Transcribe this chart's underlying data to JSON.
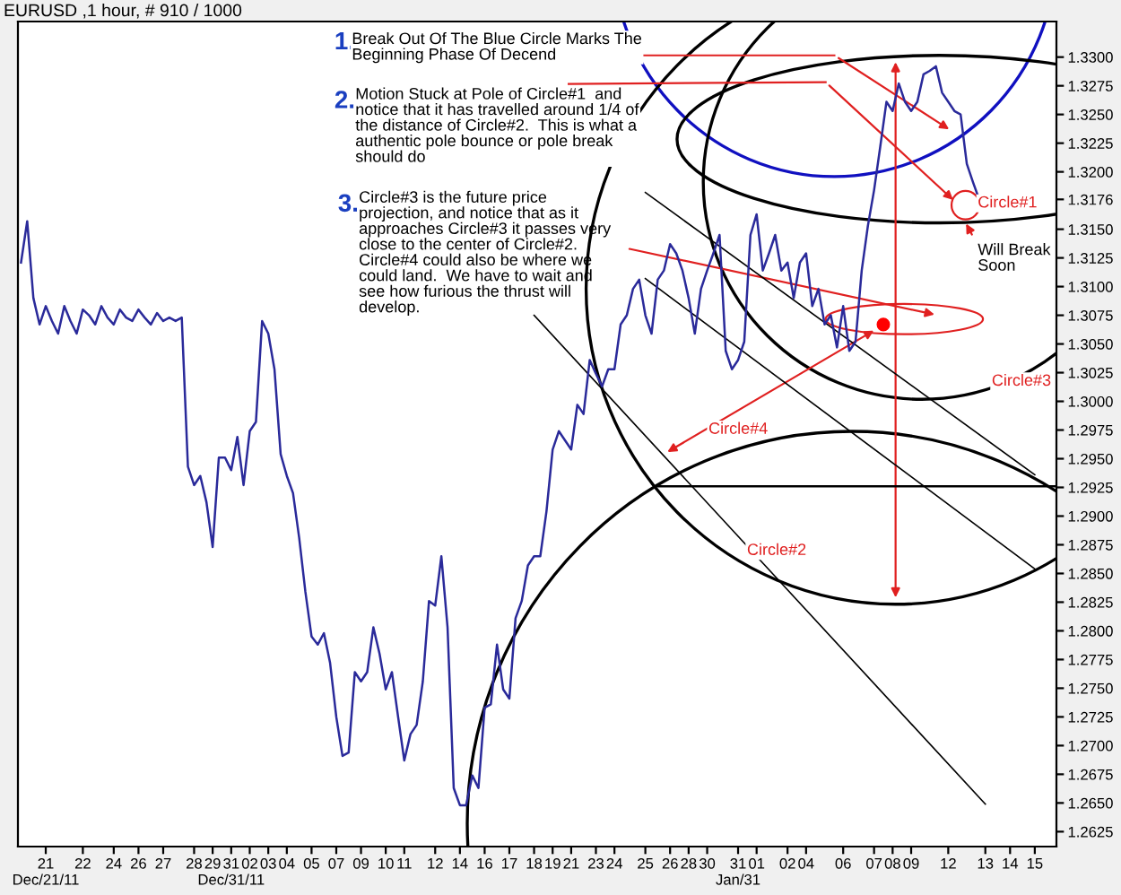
{
  "chart_data": {
    "type": "line",
    "title": "EURUSD ,1 hour, # 910 / 1000",
    "annotations": [
      "1.",
      "Break Out Of The Blue Circle Marks The\nBeginning Phase Of Decend",
      "2.",
      "Motion Stuck at Pole of Circle#1  and\nnotice that it has travelled around 1/4 of\nthe distance of Circle#2.  This is what a\nauthentic pole bounce or pole break\nshould do",
      "3.",
      "Circle#3 is the future price\nprojection, and notice that as it\napproaches Circle#3 it passes very\nclose to the center of Circle#2.\nCircle#4 could also be where we\ncould land.  We have to wait and\nsee how furious the thrust will\ndevelop.",
      "Circle#1",
      "Circle#2",
      "Circle#3",
      "Circle#4",
      "Will Break\nSoon"
    ],
    "categories": [
      null,
      null,
      null,
      null,
      "21\nDec/21/11",
      null,
      null,
      null,
      null,
      null,
      "22",
      null,
      null,
      null,
      null,
      "24",
      null,
      null,
      null,
      "26",
      null,
      null,
      null,
      "27",
      null,
      null,
      null,
      null,
      "28",
      null,
      null,
      "29",
      null,
      null,
      "31\nDec/31/11",
      null,
      null,
      "02",
      null,
      null,
      "03",
      null,
      null,
      "04",
      null,
      null,
      null,
      "05",
      null,
      null,
      null,
      "07",
      null,
      null,
      null,
      "09",
      null,
      null,
      null,
      "10",
      null,
      null,
      "11",
      null,
      null,
      null,
      null,
      "12",
      null,
      null,
      null,
      "14",
      null,
      null,
      null,
      "16",
      null,
      null,
      null,
      "17",
      null,
      null,
      null,
      "18",
      null,
      null,
      "19",
      null,
      null,
      "21",
      null,
      null,
      null,
      "23",
      null,
      null,
      "24",
      null,
      null,
      null,
      null,
      "25",
      null,
      null,
      null,
      "26",
      null,
      null,
      "28",
      null,
      null,
      "30",
      null,
      null,
      null,
      null,
      "31\nJan/31",
      null,
      null,
      "01",
      null,
      null,
      null,
      null,
      "02",
      null,
      null,
      "04",
      null,
      null,
      null,
      null,
      null,
      "06",
      null,
      null,
      null,
      null,
      "07",
      null,
      null,
      "08",
      null,
      null,
      "09",
      null,
      null,
      null,
      null,
      null,
      "12",
      null,
      null,
      null,
      null,
      null,
      "13",
      null,
      null,
      null,
      "14",
      null,
      null,
      null,
      "15",
      null,
      null,
      null
    ],
    "ylim": [
      1.2612,
      1.3331
    ],
    "yticks": [
      {
        "value": 1.2625,
        "label": "1.2625"
      },
      {
        "value": 1.265,
        "label": "1.2650"
      },
      {
        "value": 1.2675,
        "label": "1.2675"
      },
      {
        "value": 1.27,
        "label": "1.2700"
      },
      {
        "value": 1.2725,
        "label": "1.2725"
      },
      {
        "value": 1.275,
        "label": "1.2750"
      },
      {
        "value": 1.2775,
        "label": "1.2775"
      },
      {
        "value": 1.28,
        "label": "1.2800"
      },
      {
        "value": 1.2825,
        "label": "1.2825"
      },
      {
        "value": 1.285,
        "label": "1.2850"
      },
      {
        "value": 1.2875,
        "label": "1.2875"
      },
      {
        "value": 1.29,
        "label": "1.2900"
      },
      {
        "value": 1.2925,
        "label": "1.2925"
      },
      {
        "value": 1.295,
        "label": "1.2950"
      },
      {
        "value": 1.2975,
        "label": "1.2975"
      },
      {
        "value": 1.3,
        "label": "1.3000"
      },
      {
        "value": 1.3025,
        "label": "1.3025"
      },
      {
        "value": 1.305,
        "label": "1.3050"
      },
      {
        "value": 1.3075,
        "label": "1.3075"
      },
      {
        "value": 1.31,
        "label": "1.3100"
      },
      {
        "value": 1.3125,
        "label": "1.3125"
      },
      {
        "value": 1.315,
        "label": "1.3150"
      },
      {
        "value": 1.3176,
        "label": "1.3176"
      },
      {
        "value": 1.32,
        "label": "1.3200"
      },
      {
        "value": 1.3225,
        "label": "1.3225"
      },
      {
        "value": 1.325,
        "label": "1.3250"
      },
      {
        "value": 1.3275,
        "label": "1.3275"
      },
      {
        "value": 1.33,
        "label": "1.3300"
      }
    ],
    "ref_lines": [
      {
        "axis": "y",
        "value": 1.2926,
        "color": "#000000"
      }
    ],
    "grid": false,
    "legend": false,
    "marker": "none",
    "line_style": "solid",
    "series": [
      {
        "color": "#2a2a9a",
        "values": [
          1.3121,
          1.3157,
          1.309,
          1.3067,
          1.3083,
          1.307,
          1.3059,
          1.3083,
          1.307,
          1.3059,
          1.308,
          1.3075,
          1.3067,
          1.3083,
          1.3073,
          1.3067,
          1.308,
          1.3073,
          1.307,
          1.308,
          1.3073,
          1.3067,
          1.3077,
          1.307,
          1.3073,
          1.307,
          1.3073,
          1.2943,
          1.2927,
          1.2935,
          1.2912,
          1.2873,
          1.2951,
          1.2951,
          1.294,
          1.2969,
          1.2927,
          1.2974,
          1.2982,
          1.307,
          1.3059,
          1.3028,
          1.2954,
          1.2935,
          1.292,
          1.2881,
          1.2834,
          1.2795,
          1.2788,
          1.2798,
          1.2772,
          1.2725,
          1.2691,
          1.2694,
          1.2764,
          1.2756,
          1.2764,
          1.2803,
          1.278,
          1.2749,
          1.2764,
          1.2725,
          1.2687,
          1.271,
          1.2718,
          1.2756,
          1.2826,
          1.2822,
          1.2865,
          1.2803,
          1.2663,
          1.2648,
          1.2648,
          1.2674,
          1.2663,
          1.2733,
          1.2736,
          1.2788,
          1.2749,
          1.2741,
          1.2811,
          1.2826,
          1.2857,
          1.2865,
          1.2865,
          1.2904,
          1.2958,
          1.2974,
          1.2966,
          1.2958,
          1.2997,
          1.2989,
          1.3036,
          1.3024,
          1.3013,
          1.3028,
          1.3028,
          1.3067,
          1.3075,
          1.3098,
          1.3106,
          1.3075,
          1.3059,
          1.3106,
          1.3114,
          1.3137,
          1.3129,
          1.3114,
          1.309,
          1.3059,
          1.3098,
          1.3114,
          1.3129,
          1.3145,
          1.3044,
          1.3028,
          1.3036,
          1.3052,
          1.3145,
          1.3163,
          1.3114,
          1.3129,
          1.3145,
          1.3114,
          1.3121,
          1.309,
          1.3121,
          1.3129,
          1.3083,
          1.3098,
          1.3067,
          1.3075,
          1.3047,
          1.3083,
          1.3044,
          1.3052,
          1.3114,
          1.3153,
          1.3184,
          1.3222,
          1.3261,
          1.3253,
          1.3277,
          1.3261,
          1.3253,
          1.3261,
          1.3285,
          1.3288,
          1.3292,
          1.3269,
          1.3261,
          1.3253,
          1.325,
          1.3207,
          1.3191,
          1.3176,
          null,
          null,
          null,
          null,
          null,
          null,
          null,
          null,
          null,
          null,
          null,
          null
        ]
      },
      {
        "type": "line",
        "color": "#000000",
        "x": [
          "25",
          "15"
        ],
        "values": [
          1.3182,
          1.2936
        ]
      },
      {
        "type": "line",
        "color": "#000000",
        "x": [
          "25",
          "15"
        ],
        "values": [
          1.3107,
          1.2854
        ]
      },
      {
        "type": "line",
        "color": "#000000",
        "x": [
          "18",
          "13"
        ],
        "values": [
          1.3075,
          1.2649
        ]
      }
    ]
  }
}
